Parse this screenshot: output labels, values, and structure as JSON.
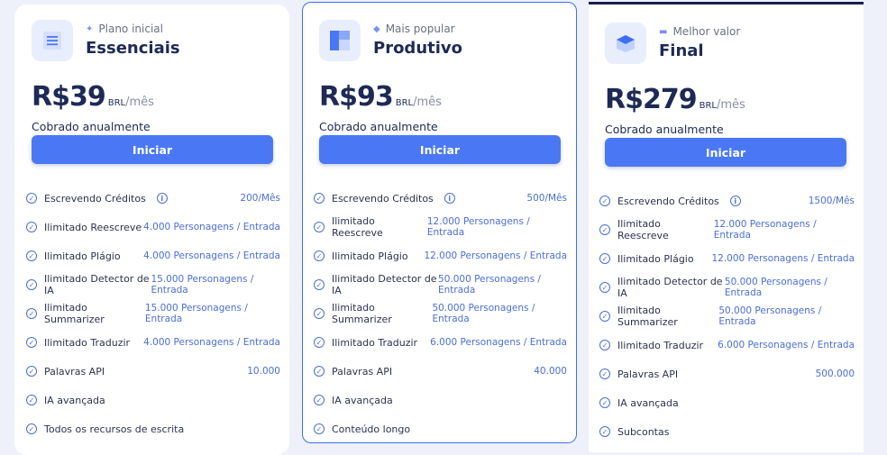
{
  "plans": [
    {
      "tag": "Plano inicial",
      "name": "Essenciais",
      "price": "R$39",
      "currency": "BRL",
      "period": "/mês",
      "billing": "Cobrado anualmente",
      "button": "Iniciar",
      "icon": "list-icon",
      "features": [
        {
          "label": "Escrevendo Créditos",
          "info": true,
          "value": "200/Mês"
        },
        {
          "label": "Ilimitado Reescreve",
          "value": "4.000 Personagens / Entrada"
        },
        {
          "label": "Ilimitado Plágio",
          "value": "4.000 Personagens / Entrada"
        },
        {
          "label": "Ilimitado Detector de IA",
          "value": "15.000 Personagens / Entrada"
        },
        {
          "label": "Ilimitado Summarizer",
          "value": "15.000 Personagens / Entrada"
        },
        {
          "label": "Ilimitado Traduzir",
          "value": "4.000 Personagens / Entrada"
        },
        {
          "label": "Palavras API",
          "value": "10.000"
        },
        {
          "label": "IA avançada",
          "value": ""
        },
        {
          "label": "Todos os recursos de escrita",
          "value": ""
        }
      ]
    },
    {
      "tag": "Mais popular",
      "name": "Produtivo",
      "price": "R$93",
      "currency": "BRL",
      "period": "/mês",
      "billing": "Cobrado anualmente",
      "button": "Iniciar",
      "icon": "layout-icon",
      "features": [
        {
          "label": "Escrevendo Créditos",
          "info": true,
          "value": "500/Mês"
        },
        {
          "label": "Ilimitado Reescreve",
          "value": "12.000 Personagens / Entrada"
        },
        {
          "label": "Ilimitado Plágio",
          "value": "12.000 Personagens / Entrada"
        },
        {
          "label": "Ilimitado Detector de IA",
          "value": "50.000 Personagens / Entrada"
        },
        {
          "label": "Ilimitado Summarizer",
          "value": "50.000 Personagens / Entrada"
        },
        {
          "label": "Ilimitado Traduzir",
          "value": "6.000 Personagens / Entrada"
        },
        {
          "label": "Palavras API",
          "value": "40.000"
        },
        {
          "label": "IA avançada",
          "value": ""
        },
        {
          "label": "Conteúdo longo",
          "value": ""
        }
      ]
    },
    {
      "tag": "Melhor valor",
      "name": "Final",
      "price": "R$279",
      "currency": "BRL",
      "period": "/mês",
      "billing": "Cobrado anualmente",
      "button": "Iniciar",
      "icon": "box-icon",
      "features": [
        {
          "label": "Escrevendo Créditos",
          "info": true,
          "value": "1500/Mês"
        },
        {
          "label": "Ilimitado Reescreve",
          "value": "12.000 Personagens / Entrada"
        },
        {
          "label": "Ilimitado Plágio",
          "value": "12.000 Personagens / Entrada"
        },
        {
          "label": "Ilimitado Detector de IA",
          "value": "50.000 Personagens / Entrada"
        },
        {
          "label": "Ilimitado Summarizer",
          "value": "50.000 Personagens / Entrada"
        },
        {
          "label": "Ilimitado Traduzir",
          "value": "6.000 Personagens / Entrada"
        },
        {
          "label": "Palavras API",
          "value": "500.000"
        },
        {
          "label": "IA avançada",
          "value": ""
        },
        {
          "label": "Subcontas",
          "value": ""
        }
      ]
    }
  ],
  "colors": {
    "accent": "#4a78f5",
    "highlight_border": "#3f6ff0",
    "title": "#1e2a55",
    "value": "#4a6fd8"
  }
}
